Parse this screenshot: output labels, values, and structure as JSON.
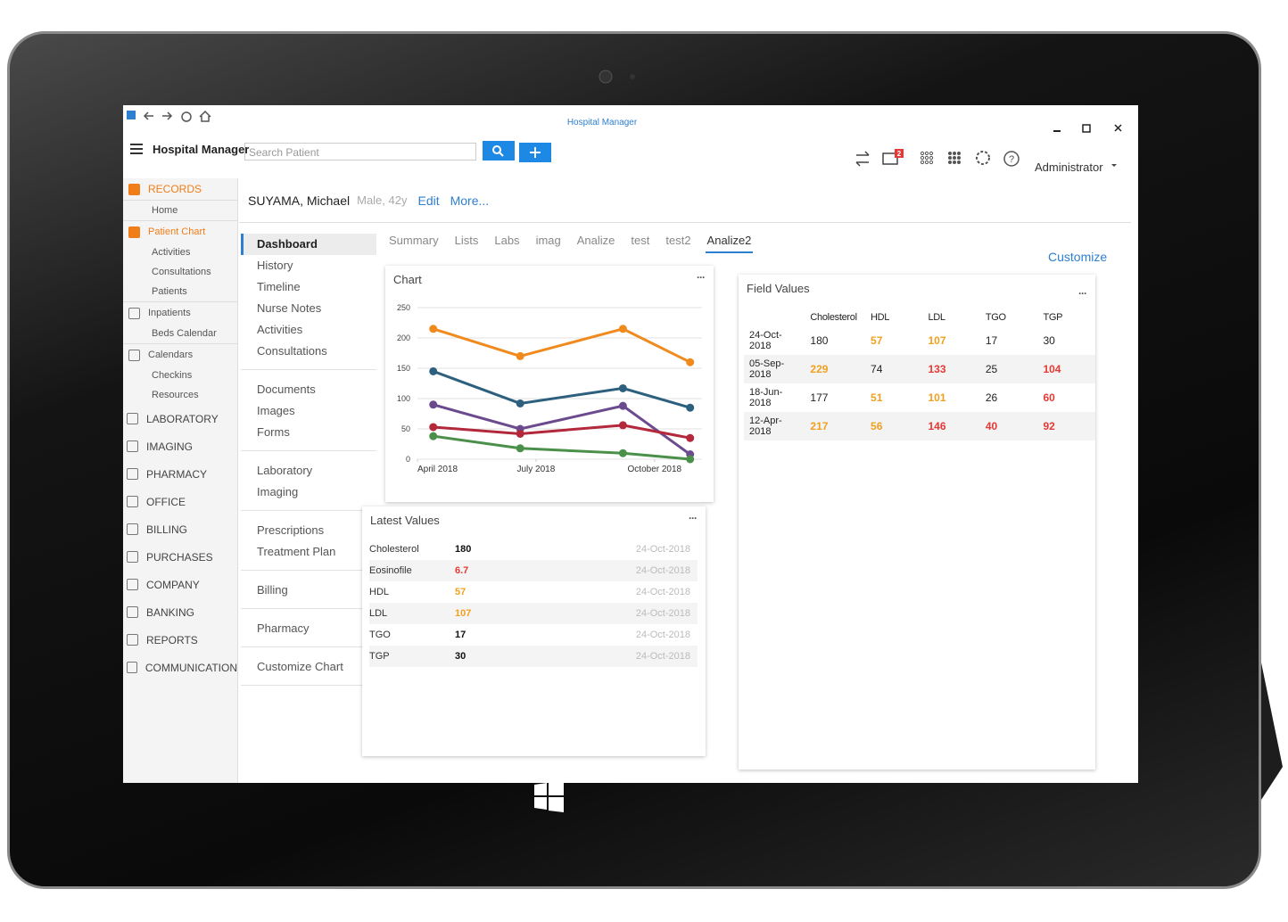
{
  "window": {
    "title": "Hospital Manager"
  },
  "toolbar": {
    "app_name": "Hospital Manager",
    "search_placeholder": "Search Patient",
    "notifications": 2,
    "user": "Administrator"
  },
  "sidebar": {
    "items": [
      {
        "label": "RECORDS",
        "style": "accent-head"
      },
      {
        "label": "Home",
        "style": "sub"
      },
      {
        "label": "Patient Chart",
        "style": "accent"
      },
      {
        "label": "Activities",
        "style": "sub"
      },
      {
        "label": "Consultations",
        "style": "sub"
      },
      {
        "label": "Patients",
        "style": "sub"
      },
      {
        "label": "Inpatients",
        "style": "group"
      },
      {
        "label": "Beds Calendar",
        "style": "sub"
      },
      {
        "label": "Calendars",
        "style": "group"
      },
      {
        "label": "Checkins",
        "style": "sub"
      },
      {
        "label": "Resources",
        "style": "sub"
      },
      {
        "label": "LABORATORY",
        "style": "module"
      },
      {
        "label": "IMAGING",
        "style": "module"
      },
      {
        "label": "PHARMACY",
        "style": "module"
      },
      {
        "label": "OFFICE",
        "style": "module"
      },
      {
        "label": "BILLING",
        "style": "module"
      },
      {
        "label": "PURCHASES",
        "style": "module"
      },
      {
        "label": "COMPANY",
        "style": "module"
      },
      {
        "label": "BANKING",
        "style": "module"
      },
      {
        "label": "REPORTS",
        "style": "module"
      },
      {
        "label": "COMMUNICATION",
        "style": "module"
      }
    ]
  },
  "patient": {
    "name": "SUYAMA, Michael",
    "info": "Male, 42y",
    "actions": [
      "Edit",
      "More..."
    ]
  },
  "nav": {
    "groups": [
      [
        "Dashboard",
        "History",
        "Timeline",
        "Nurse Notes",
        "Activities",
        "Consultations"
      ],
      [
        "Documents",
        "Images",
        "Forms"
      ],
      [
        "Laboratory",
        "Imaging"
      ],
      [
        "Prescriptions",
        "Treatment Plan"
      ],
      [
        "Billing"
      ],
      [
        "Pharmacy"
      ],
      [
        "Customize Chart"
      ]
    ]
  },
  "tabs": [
    "Summary",
    "Lists",
    "Labs",
    "imag",
    "Analize",
    "test",
    "test2",
    "Analize2"
  ],
  "customize": "Customize",
  "chart": {
    "type": "line",
    "title": "Chart",
    "x": [
      4.4,
      6.6,
      9.2,
      10.9
    ],
    "xlim": [
      4,
      11.2
    ],
    "xticks": [
      {
        "value": 4,
        "label": "April 2018"
      },
      {
        "value": 7,
        "label": "July 2018"
      },
      {
        "value": 10,
        "label": "October 2018"
      }
    ],
    "ylim": [
      0,
      250
    ],
    "yticks": [
      0,
      50,
      100,
      150,
      200,
      250
    ],
    "grid": true,
    "series": [
      {
        "color": "#f08a1c",
        "values": [
          215,
          170,
          215,
          160
        ]
      },
      {
        "color": "#2d5f7e",
        "values": [
          145,
          92,
          117,
          85
        ]
      },
      {
        "color": "#6b4b8e",
        "values": [
          90,
          50,
          88,
          8
        ]
      },
      {
        "color": "#b3283a",
        "values": [
          53,
          42,
          56,
          35
        ]
      },
      {
        "color": "#4b904a",
        "values": [
          38,
          18,
          10,
          0
        ]
      }
    ]
  },
  "latest": {
    "title": "Latest Values",
    "rows": [
      {
        "name": "Cholesterol",
        "value": 180,
        "color": "#111111",
        "date": "24-Oct-2018"
      },
      {
        "name": "Eosinofile",
        "value": 6.7,
        "color": "#e53935",
        "date": "24-Oct-2018"
      },
      {
        "name": "HDL",
        "value": 57,
        "color": "#f0a020",
        "date": "24-Oct-2018"
      },
      {
        "name": "LDL",
        "value": 107,
        "color": "#f0a020",
        "date": "24-Oct-2018"
      },
      {
        "name": "TGO",
        "value": 17,
        "color": "#111111",
        "date": "24-Oct-2018"
      },
      {
        "name": "TGP",
        "value": 30,
        "color": "#111111",
        "date": "24-Oct-2018"
      }
    ]
  },
  "fields": {
    "title": "Field Values",
    "columns": [
      "Cholesterol",
      "HDL",
      "LDL",
      "TGO",
      "TGP"
    ],
    "rows": [
      {
        "date": "24-Oct-2018",
        "values": [
          180,
          57,
          107,
          17,
          30
        ],
        "colors": [
          "#222222",
          "#f0a020",
          "#f0a020",
          "#222222",
          "#222222"
        ]
      },
      {
        "date": "05-Sep-2018",
        "values": [
          229,
          74,
          133,
          25,
          104
        ],
        "colors": [
          "#f0a020",
          "#222222",
          "#e53935",
          "#222222",
          "#e53935"
        ]
      },
      {
        "date": "18-Jun-2018",
        "values": [
          177,
          51,
          101,
          26,
          60
        ],
        "colors": [
          "#222222",
          "#f0a020",
          "#f0a020",
          "#222222",
          "#e53935"
        ]
      },
      {
        "date": "12-Apr-2018",
        "values": [
          217,
          56,
          146,
          40,
          92
        ],
        "colors": [
          "#f0a020",
          "#f0a020",
          "#e53935",
          "#e53935",
          "#e53935"
        ]
      }
    ]
  }
}
